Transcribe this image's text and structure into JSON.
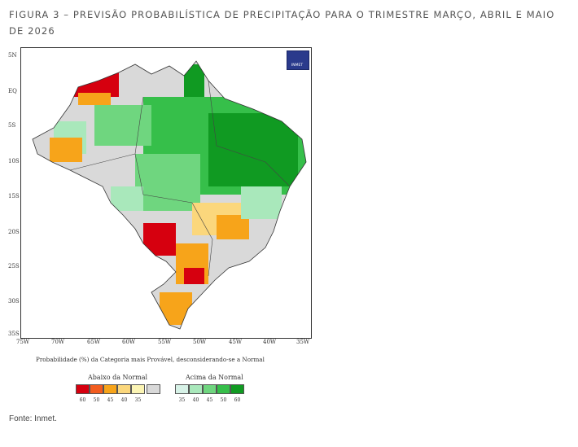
{
  "caption": "FIGURA 3 – PREVISÃO PROBABILÍSTICA DE PRECIPITAÇÃO PARA O TRIMESTRE MARÇO, ABRIL E MAIO DE 2026",
  "source": "Fonte: Inmet.",
  "logo_text": "INMET",
  "map": {
    "lat_labels": [
      "5N",
      "EQ",
      "5S",
      "10S",
      "15S",
      "20S",
      "25S",
      "30S",
      "35S"
    ],
    "lon_labels": [
      "75W",
      "70W",
      "65W",
      "60W",
      "55W",
      "50W",
      "45W",
      "40W",
      "35W"
    ],
    "probability_text": "Probabilidade (%) da Categoria mais Provável, desconsiderando-se a Normal",
    "legend": {
      "below_title": "Abaixo da Normal",
      "above_title": "Acima da Normal",
      "below_values": [
        "60",
        "50",
        "45",
        "40",
        "35"
      ],
      "above_values": [
        "35",
        "40",
        "45",
        "50",
        "60"
      ],
      "below_colors": [
        "#d6000f",
        "#f25c1f",
        "#f7a41a",
        "#fbd77c",
        "#fbf4b4"
      ],
      "neutral_color": "#d9d9d9",
      "above_colors": [
        "#d7f2e7",
        "#a9e8bb",
        "#6fd67f",
        "#36bf4a",
        "#109a22"
      ]
    }
  }
}
